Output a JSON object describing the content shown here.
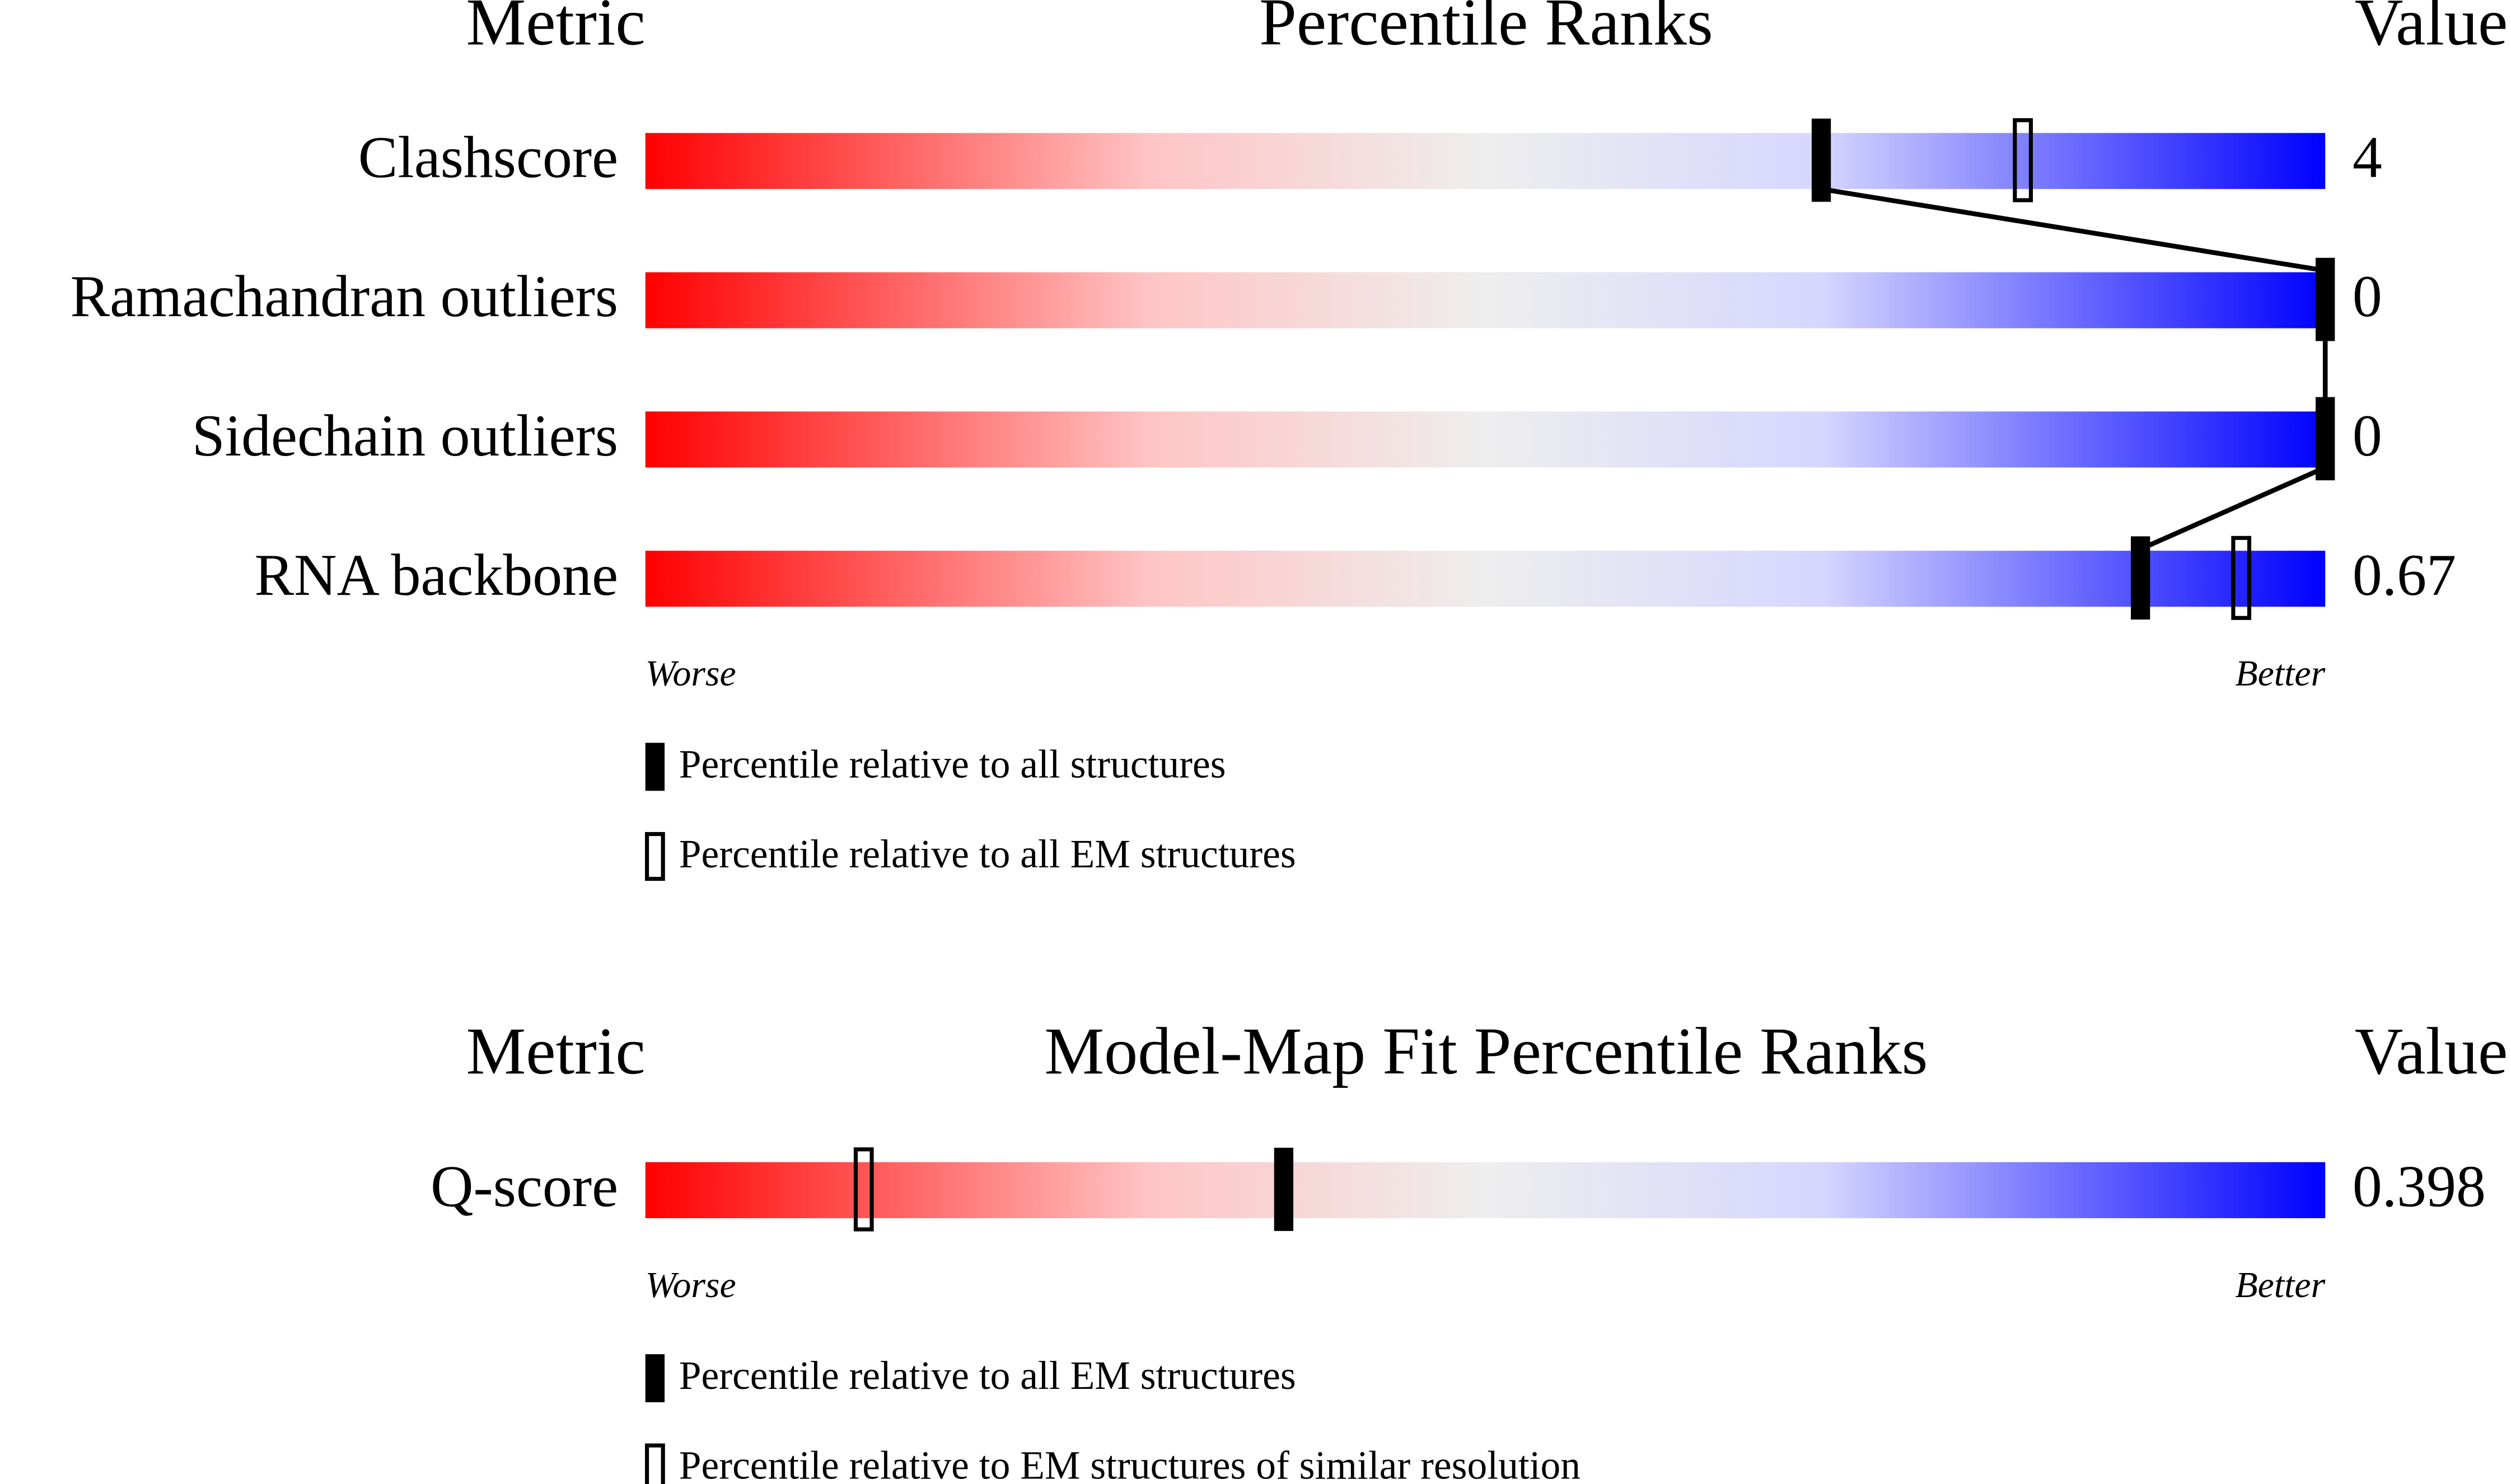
{
  "panels": [
    {
      "headers": {
        "metric": "Metric",
        "title": "Percentile Ranks",
        "value": "Value"
      },
      "xlim": [
        0,
        100
      ],
      "metrics": [
        {
          "name": "Clashscore",
          "value": 4,
          "percentile_filled": 70,
          "percentile_open": 82
        },
        {
          "name": "Ramachandran outliers",
          "value": 0,
          "percentile_filled": 100
        },
        {
          "name": "Sidechain outliers",
          "value": 0,
          "percentile_filled": 100
        },
        {
          "name": "RNA backbone",
          "value": 0.67,
          "percentile_filled": 89,
          "percentile_open": 95
        }
      ],
      "scale_labels": {
        "worse": "Worse",
        "better": "Better"
      },
      "legend": {
        "filled": "Percentile relative to all structures",
        "open": "Percentile relative to all EM structures"
      },
      "connect": true
    },
    {
      "headers": {
        "metric": "Metric",
        "title": "Model-Map Fit Percentile Ranks",
        "value": "Value"
      },
      "xlim": [
        0,
        100
      ],
      "metrics": [
        {
          "name": "Q-score",
          "value": 0.398,
          "percentile_filled": 38,
          "percentile_open": 13
        }
      ],
      "scale_labels": {
        "worse": "Worse",
        "better": "Better"
      },
      "legend": {
        "filled": "Percentile relative to all EM structures",
        "open": "Percentile relative to EM structures of similar resolution"
      },
      "connect": false
    }
  ]
}
